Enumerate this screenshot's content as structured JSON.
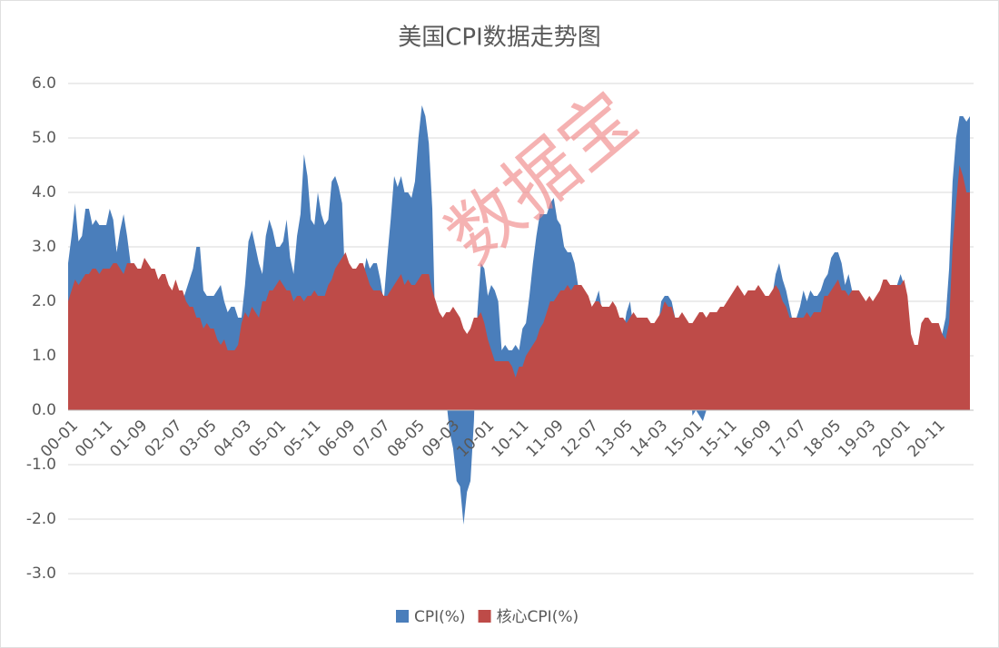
{
  "chart_data": {
    "type": "area",
    "title": "美国CPI数据走势图",
    "watermark": "数据宝",
    "categories": [
      "00-01",
      null,
      null,
      null,
      null,
      null,
      null,
      null,
      null,
      null,
      "00-11",
      null,
      null,
      null,
      null,
      null,
      null,
      null,
      null,
      null,
      "01-09",
      null,
      null,
      null,
      null,
      null,
      null,
      null,
      null,
      null,
      "02-07",
      null,
      null,
      null,
      null,
      null,
      null,
      null,
      null,
      null,
      "03-05",
      null,
      null,
      null,
      null,
      null,
      null,
      null,
      null,
      null,
      "04-03",
      null,
      null,
      null,
      null,
      null,
      null,
      null,
      null,
      null,
      "05-01",
      null,
      null,
      null,
      null,
      null,
      null,
      null,
      null,
      null,
      "05-11",
      null,
      null,
      null,
      null,
      null,
      null,
      null,
      null,
      null,
      "06-09",
      null,
      null,
      null,
      null,
      null,
      null,
      null,
      null,
      null,
      "07-07",
      null,
      null,
      null,
      null,
      null,
      null,
      null,
      null,
      null,
      "08-05",
      null,
      null,
      null,
      null,
      null,
      null,
      null,
      null,
      null,
      "09-03",
      null,
      null,
      null,
      null,
      null,
      null,
      null,
      null,
      null,
      "10-01",
      null,
      null,
      null,
      null,
      null,
      null,
      null,
      null,
      null,
      "10-11",
      null,
      null,
      null,
      null,
      null,
      null,
      null,
      null,
      null,
      "11-09",
      null,
      null,
      null,
      null,
      null,
      null,
      null,
      null,
      null,
      "12-07",
      null,
      null,
      null,
      null,
      null,
      null,
      null,
      null,
      null,
      "13-05",
      null,
      null,
      null,
      null,
      null,
      null,
      null,
      null,
      null,
      "14-03",
      null,
      null,
      null,
      null,
      null,
      null,
      null,
      null,
      null,
      "15-01",
      null,
      null,
      null,
      null,
      null,
      null,
      null,
      null,
      null,
      "15-11",
      null,
      null,
      null,
      null,
      null,
      null,
      null,
      null,
      null,
      "16-09",
      null,
      null,
      null,
      null,
      null,
      null,
      null,
      null,
      null,
      "17-07",
      null,
      null,
      null,
      null,
      null,
      null,
      null,
      null,
      null,
      "18-05",
      null,
      null,
      null,
      null,
      null,
      null,
      null,
      null,
      null,
      "19-03",
      null,
      null,
      null,
      null,
      null,
      null,
      null,
      null,
      null,
      "20-01",
      null,
      null,
      null,
      null,
      null,
      null,
      null,
      null,
      null,
      "20-11",
      null,
      null,
      null,
      null,
      null,
      null,
      null,
      null,
      null,
      null
    ],
    "series": [
      {
        "name": "CPI(%)",
        "color": "#4a7ebb",
        "values": [
          2.7,
          3.2,
          3.8,
          3.1,
          3.2,
          3.7,
          3.7,
          3.4,
          3.5,
          3.4,
          3.4,
          3.4,
          3.7,
          3.5,
          2.9,
          3.3,
          3.6,
          3.2,
          2.7,
          2.7,
          2.6,
          2.1,
          1.9,
          1.6,
          1.1,
          1.1,
          1.5,
          1.6,
          1.2,
          1.1,
          1.5,
          1.8,
          1.5,
          2.0,
          2.2,
          2.4,
          2.6,
          3.0,
          3.0,
          2.2,
          2.1,
          2.1,
          2.1,
          2.2,
          2.3,
          2.0,
          1.8,
          1.9,
          1.9,
          1.7,
          1.7,
          2.3,
          3.1,
          3.3,
          3.0,
          2.7,
          2.5,
          3.2,
          3.5,
          3.3,
          3.0,
          3.0,
          3.1,
          3.5,
          2.8,
          2.5,
          3.2,
          3.6,
          4.7,
          4.3,
          3.5,
          3.4,
          4.0,
          3.6,
          3.4,
          3.5,
          4.2,
          4.3,
          4.1,
          3.8,
          2.1,
          1.3,
          2.0,
          2.5,
          2.1,
          2.4,
          2.8,
          2.6,
          2.7,
          2.7,
          2.4,
          2.0,
          2.8,
          3.5,
          4.3,
          4.1,
          4.3,
          4.0,
          4.0,
          3.9,
          4.2,
          5.0,
          5.6,
          5.4,
          4.9,
          3.7,
          1.1,
          0.1,
          0.0,
          0.2,
          -0.4,
          -0.7,
          -1.3,
          -1.4,
          -2.1,
          -1.5,
          -1.3,
          -0.2,
          1.8,
          2.7,
          2.6,
          2.1,
          2.3,
          2.2,
          2.0,
          1.1,
          1.2,
          1.1,
          1.1,
          1.2,
          1.1,
          1.5,
          1.6,
          2.1,
          2.7,
          3.2,
          3.6,
          3.6,
          3.6,
          3.8,
          3.9,
          3.5,
          3.4,
          3.0,
          2.9,
          2.9,
          2.7,
          2.3,
          1.7,
          1.7,
          1.4,
          1.7,
          2.0,
          2.2,
          1.8,
          1.7,
          1.6,
          2.0,
          1.5,
          1.1,
          1.4,
          1.8,
          2.0,
          1.5,
          1.2,
          1.0,
          1.2,
          1.5,
          1.6,
          1.1,
          1.5,
          2.0,
          2.1,
          2.1,
          2.0,
          1.7,
          1.7,
          1.7,
          1.3,
          0.8,
          -0.1,
          0.0,
          -0.1,
          -0.2,
          0.0,
          0.1,
          0.2,
          0.2,
          0.0,
          0.2,
          0.5,
          0.7,
          1.4,
          1.0,
          0.9,
          1.1,
          1.0,
          1.0,
          0.8,
          1.1,
          1.5,
          1.6,
          1.7,
          2.1,
          2.5,
          2.7,
          2.4,
          2.2,
          1.9,
          1.6,
          1.7,
          1.9,
          2.2,
          2.0,
          2.2,
          2.1,
          2.1,
          2.2,
          2.4,
          2.5,
          2.8,
          2.9,
          2.9,
          2.7,
          2.3,
          2.5,
          2.2,
          1.9,
          1.6,
          1.5,
          1.9,
          2.0,
          1.8,
          1.6,
          1.8,
          1.7,
          1.7,
          1.8,
          2.1,
          2.3,
          2.5,
          2.3,
          1.5,
          0.3,
          0.1,
          0.6,
          1.0,
          1.3,
          1.4,
          1.2,
          1.2,
          1.4,
          1.4,
          1.7,
          2.6,
          4.2,
          5.0,
          5.4,
          5.4,
          5.3,
          5.4
        ]
      },
      {
        "name": "核心CPI(%)",
        "color": "#be4b48",
        "values": [
          2.0,
          2.2,
          2.4,
          2.3,
          2.4,
          2.5,
          2.5,
          2.6,
          2.6,
          2.5,
          2.6,
          2.6,
          2.6,
          2.7,
          2.7,
          2.6,
          2.5,
          2.7,
          2.7,
          2.7,
          2.6,
          2.6,
          2.8,
          2.7,
          2.6,
          2.6,
          2.4,
          2.5,
          2.5,
          2.3,
          2.2,
          2.4,
          2.2,
          2.2,
          2.0,
          1.9,
          1.9,
          1.7,
          1.7,
          1.5,
          1.6,
          1.5,
          1.5,
          1.3,
          1.2,
          1.3,
          1.1,
          1.1,
          1.1,
          1.2,
          1.6,
          1.8,
          1.7,
          1.9,
          1.8,
          1.7,
          2.0,
          2.0,
          2.2,
          2.2,
          2.3,
          2.4,
          2.3,
          2.2,
          2.2,
          2.0,
          2.1,
          2.1,
          2.0,
          2.1,
          2.1,
          2.2,
          2.1,
          2.1,
          2.1,
          2.3,
          2.4,
          2.6,
          2.7,
          2.8,
          2.9,
          2.7,
          2.6,
          2.6,
          2.7,
          2.7,
          2.5,
          2.3,
          2.2,
          2.2,
          2.2,
          2.1,
          2.1,
          2.2,
          2.3,
          2.4,
          2.5,
          2.3,
          2.4,
          2.3,
          2.3,
          2.4,
          2.5,
          2.5,
          2.5,
          2.2,
          2.0,
          1.8,
          1.7,
          1.8,
          1.8,
          1.9,
          1.8,
          1.7,
          1.5,
          1.4,
          1.5,
          1.7,
          1.7,
          1.8,
          1.6,
          1.3,
          1.1,
          0.9,
          0.9,
          0.9,
          0.9,
          0.9,
          0.8,
          0.6,
          0.8,
          0.8,
          1.0,
          1.1,
          1.2,
          1.3,
          1.5,
          1.6,
          1.8,
          2.0,
          2.0,
          2.1,
          2.2,
          2.2,
          2.3,
          2.2,
          2.3,
          2.3,
          2.3,
          2.2,
          2.1,
          1.9,
          2.0,
          2.0,
          1.9,
          1.9,
          1.9,
          2.0,
          1.9,
          1.7,
          1.7,
          1.6,
          1.7,
          1.8,
          1.7,
          1.7,
          1.7,
          1.7,
          1.6,
          1.6,
          1.7,
          1.8,
          2.0,
          1.9,
          1.9,
          1.7,
          1.7,
          1.8,
          1.7,
          1.6,
          1.6,
          1.7,
          1.8,
          1.8,
          1.7,
          1.8,
          1.8,
          1.8,
          1.9,
          1.9,
          2.0,
          2.1,
          2.2,
          2.3,
          2.2,
          2.1,
          2.2,
          2.2,
          2.2,
          2.3,
          2.2,
          2.1,
          2.1,
          2.2,
          2.3,
          2.2,
          2.0,
          1.9,
          1.7,
          1.7,
          1.7,
          1.7,
          1.7,
          1.8,
          1.7,
          1.8,
          1.8,
          1.8,
          2.1,
          2.1,
          2.2,
          2.3,
          2.4,
          2.2,
          2.2,
          2.1,
          2.2,
          2.2,
          2.2,
          2.1,
          2.0,
          2.1,
          2.0,
          2.1,
          2.2,
          2.4,
          2.4,
          2.3,
          2.3,
          2.3,
          2.3,
          2.4,
          2.1,
          1.4,
          1.2,
          1.2,
          1.6,
          1.7,
          1.7,
          1.6,
          1.6,
          1.6,
          1.4,
          1.3,
          1.6,
          3.0,
          3.8,
          4.5,
          4.3,
          4.0,
          4.0
        ]
      }
    ],
    "ylim": [
      -3,
      6
    ],
    "yticks": [
      {
        "value": -3,
        "label": "-3.0"
      },
      {
        "value": -2,
        "label": "-2.0"
      },
      {
        "value": -1,
        "label": "-1.0"
      },
      {
        "value": 0,
        "label": "0.0"
      },
      {
        "value": 1,
        "label": "1.0"
      },
      {
        "value": 2,
        "label": "2.0"
      },
      {
        "value": 3,
        "label": "3.0"
      },
      {
        "value": 4,
        "label": "4.0"
      },
      {
        "value": 5,
        "label": "5.0"
      },
      {
        "value": 6,
        "label": "6.0"
      }
    ],
    "grid": true,
    "legend": "bottom"
  }
}
